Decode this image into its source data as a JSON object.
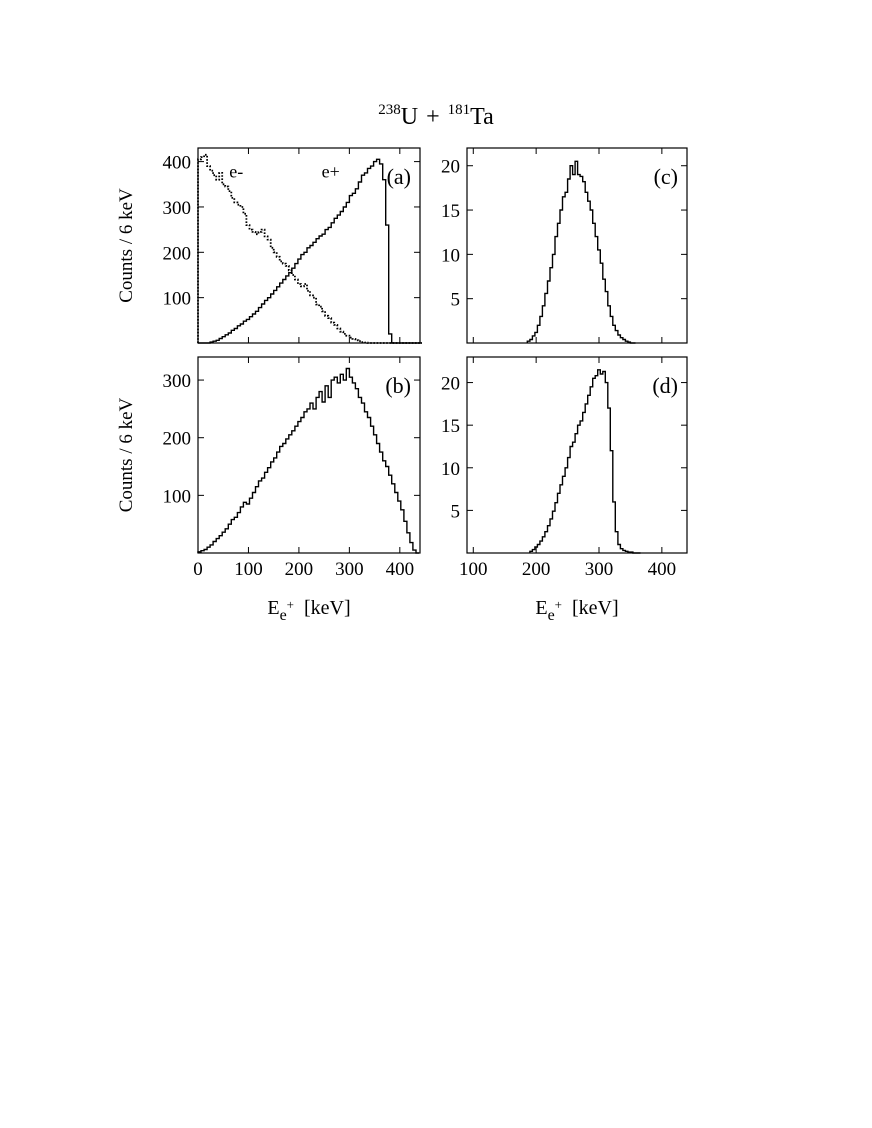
{
  "figure": {
    "title": {
      "mass1": "238",
      "elem1": "U",
      "plus": "+",
      "mass2": "181",
      "elem2": "Ta"
    },
    "ylabel": "Counts / 6 keV",
    "xlabel": {
      "E": "E",
      "sub": "e",
      "sup": "+",
      "unit": "[keV]"
    }
  },
  "chart_data": [
    {
      "panel": "(a)",
      "type": "line",
      "step": true,
      "x": [
        0,
        6,
        12,
        18,
        24,
        30,
        36,
        42,
        48,
        54,
        60,
        66,
        72,
        78,
        84,
        90,
        96,
        102,
        108,
        114,
        120,
        126,
        132,
        138,
        144,
        150,
        156,
        162,
        168,
        174,
        180,
        186,
        192,
        198,
        204,
        210,
        216,
        222,
        228,
        234,
        240,
        246,
        252,
        258,
        264,
        270,
        276,
        282,
        288,
        294,
        300,
        306,
        312,
        318,
        324,
        330,
        336,
        342,
        348,
        354,
        360,
        366,
        372,
        378,
        384,
        390,
        396,
        402,
        408,
        414,
        420,
        426,
        432,
        438
      ],
      "series": [
        {
          "name": "e⁻",
          "style": "dotted",
          "values": [
            405,
            410,
            415,
            390,
            380,
            370,
            360,
            375,
            350,
            345,
            335,
            320,
            310,
            305,
            300,
            285,
            260,
            250,
            245,
            240,
            245,
            250,
            235,
            228,
            210,
            200,
            190,
            180,
            175,
            170,
            160,
            150,
            140,
            130,
            125,
            130,
            115,
            105,
            100,
            85,
            80,
            70,
            60,
            55,
            45,
            40,
            32,
            25,
            20,
            16,
            12,
            9,
            6,
            4,
            2,
            1,
            0,
            0,
            0,
            0,
            0,
            0,
            0,
            0,
            0,
            0,
            0,
            0,
            0,
            0,
            0,
            0,
            0,
            0
          ]
        },
        {
          "name": "e⁺",
          "style": "solid",
          "values": [
            0,
            0,
            0,
            0,
            2,
            4,
            6,
            10,
            14,
            18,
            22,
            28,
            32,
            38,
            42,
            48,
            52,
            58,
            64,
            70,
            78,
            86,
            94,
            100,
            108,
            116,
            124,
            132,
            140,
            148,
            155,
            165,
            175,
            185,
            195,
            200,
            210,
            215,
            222,
            230,
            236,
            240,
            250,
            255,
            265,
            275,
            282,
            290,
            300,
            310,
            325,
            330,
            340,
            355,
            370,
            375,
            385,
            390,
            400,
            405,
            395,
            360,
            260,
            20,
            0,
            0,
            0,
            0,
            0,
            0,
            0,
            0,
            0,
            0
          ]
        }
      ],
      "xlim": [
        0,
        440
      ],
      "ylim": [
        0,
        430
      ],
      "yticks": [
        100,
        200,
        300,
        400
      ],
      "xticks": [
        0,
        100,
        200,
        300,
        400
      ],
      "show_xticklabels": false,
      "show_ylabel": true,
      "show_xlabel": false,
      "annotations": [
        {
          "text": "e-",
          "x": 62,
          "y": 365
        },
        {
          "text": "e+",
          "x": 245,
          "y": 365
        }
      ]
    },
    {
      "panel": "(b)",
      "type": "line",
      "step": true,
      "x": [
        0,
        6,
        12,
        18,
        24,
        30,
        36,
        42,
        48,
        54,
        60,
        66,
        72,
        78,
        84,
        90,
        96,
        102,
        108,
        114,
        120,
        126,
        132,
        138,
        144,
        150,
        156,
        162,
        168,
        174,
        180,
        186,
        192,
        198,
        204,
        210,
        216,
        222,
        228,
        234,
        240,
        246,
        252,
        258,
        264,
        270,
        276,
        282,
        288,
        294,
        300,
        306,
        312,
        318,
        324,
        330,
        336,
        342,
        348,
        354,
        360,
        366,
        372,
        378,
        384,
        390,
        396,
        402,
        408,
        414,
        420,
        426,
        432
      ],
      "series": [
        {
          "name": "",
          "style": "solid",
          "values": [
            2,
            4,
            6,
            10,
            14,
            20,
            25,
            30,
            36,
            42,
            50,
            58,
            62,
            70,
            80,
            88,
            85,
            95,
            105,
            115,
            125,
            130,
            140,
            148,
            158,
            165,
            175,
            185,
            190,
            198,
            205,
            212,
            220,
            228,
            235,
            245,
            250,
            260,
            250,
            270,
            280,
            262,
            290,
            270,
            300,
            305,
            295,
            310,
            300,
            320,
            305,
            295,
            285,
            270,
            260,
            245,
            235,
            220,
            205,
            190,
            175,
            160,
            150,
            135,
            120,
            105,
            90,
            75,
            55,
            35,
            18,
            5,
            0
          ]
        }
      ],
      "xlim": [
        0,
        440
      ],
      "ylim": [
        0,
        340
      ],
      "yticks": [
        100,
        200,
        300
      ],
      "xticks": [
        0,
        100,
        200,
        300,
        400
      ],
      "show_xticklabels": true,
      "show_ylabel": true,
      "show_xlabel": true
    },
    {
      "panel": "(c)",
      "type": "line",
      "step": true,
      "x": [
        186,
        190,
        194,
        198,
        202,
        206,
        210,
        214,
        218,
        222,
        226,
        230,
        234,
        238,
        242,
        246,
        250,
        254,
        258,
        262,
        266,
        270,
        274,
        278,
        282,
        286,
        290,
        294,
        298,
        302,
        306,
        310,
        314,
        318,
        322,
        326,
        330,
        334,
        338,
        342,
        346,
        350,
        354
      ],
      "series": [
        {
          "name": "",
          "style": "solid",
          "values": [
            0.2,
            0.4,
            0.8,
            1.2,
            2.0,
            3.0,
            4.2,
            5.6,
            7.0,
            8.5,
            10.0,
            12.0,
            13.5,
            15.0,
            16.5,
            17.0,
            18.5,
            20.0,
            19.0,
            20.5,
            19.0,
            18.8,
            18.2,
            17.0,
            16.0,
            15.0,
            13.5,
            12.0,
            10.5,
            9.0,
            7.2,
            5.8,
            4.2,
            3.0,
            2.0,
            1.4,
            0.9,
            0.6,
            0.4,
            0.2,
            0.1,
            0,
            0
          ]
        }
      ],
      "xlim": [
        90,
        440
      ],
      "ylim": [
        0,
        22
      ],
      "yticks": [
        5,
        10,
        15,
        20
      ],
      "xticks": [
        100,
        200,
        300,
        400
      ],
      "show_xticklabels": false,
      "show_ylabel": false,
      "show_xlabel": false
    },
    {
      "panel": "(d)",
      "type": "line",
      "step": true,
      "x": [
        190,
        194,
        198,
        202,
        206,
        210,
        214,
        218,
        222,
        226,
        230,
        234,
        238,
        242,
        246,
        250,
        254,
        258,
        262,
        266,
        270,
        274,
        278,
        282,
        286,
        290,
        294,
        298,
        302,
        306,
        310,
        314,
        318,
        322,
        326,
        330,
        334,
        338,
        342,
        346,
        350,
        354,
        358,
        362
      ],
      "series": [
        {
          "name": "",
          "style": "solid",
          "values": [
            0.2,
            0.4,
            0.7,
            1.0,
            1.4,
            1.9,
            2.5,
            3.2,
            4.0,
            4.9,
            5.9,
            7.0,
            8.0,
            9.0,
            10.0,
            11.2,
            12.5,
            13.0,
            14.0,
            15.0,
            15.5,
            16.5,
            17.5,
            18.5,
            19.5,
            20.5,
            20.8,
            21.5,
            21.0,
            21.3,
            20.0,
            17.0,
            12.0,
            6.0,
            2.5,
            1.0,
            0.5,
            0.3,
            0.2,
            0.1,
            0.1,
            0,
            0,
            0
          ]
        }
      ],
      "xlim": [
        90,
        440
      ],
      "ylim": [
        0,
        23
      ],
      "yticks": [
        5,
        10,
        15,
        20
      ],
      "xticks": [
        100,
        200,
        300,
        400
      ],
      "show_xticklabels": true,
      "show_ylabel": false,
      "show_xlabel": true
    }
  ]
}
